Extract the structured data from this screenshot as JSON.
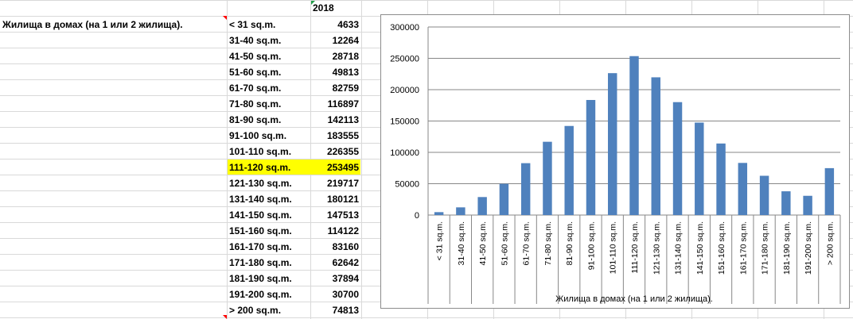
{
  "sheet": {
    "year_header": "2018",
    "row_title": "Жилища в домах (на 1 или 2 жилища).",
    "highlight_row": 9
  },
  "chart_data": {
    "type": "bar",
    "categories": [
      "< 31 sq.m.",
      "31-40 sq.m.",
      "41-50 sq.m.",
      "51-60 sq.m.",
      "61-70 sq.m.",
      "71-80 sq.m.",
      "81-90 sq.m.",
      "91-100 sq.m.",
      "101-110 sq.m.",
      "111-120 sq.m.",
      "121-130 sq.m.",
      "131-140 sq.m.",
      "141-150 sq.m.",
      "151-160 sq.m.",
      "161-170 sq.m.",
      "171-180 sq.m.",
      "181-190 sq.m.",
      "191-200 sq.m.",
      "> 200 sq.m."
    ],
    "values": [
      4633,
      12264,
      28718,
      49813,
      82759,
      116897,
      142113,
      183555,
      226355,
      253495,
      219717,
      180121,
      147513,
      114122,
      83160,
      62642,
      37894,
      30700,
      74813
    ],
    "xlabel": "Жилища в домах (на 1 или 2 жилища).",
    "ylim": [
      0,
      300000
    ],
    "yticks": [
      0,
      50000,
      100000,
      150000,
      200000,
      250000,
      300000
    ],
    "grid": true,
    "bar_color": "#4f81bd"
  }
}
